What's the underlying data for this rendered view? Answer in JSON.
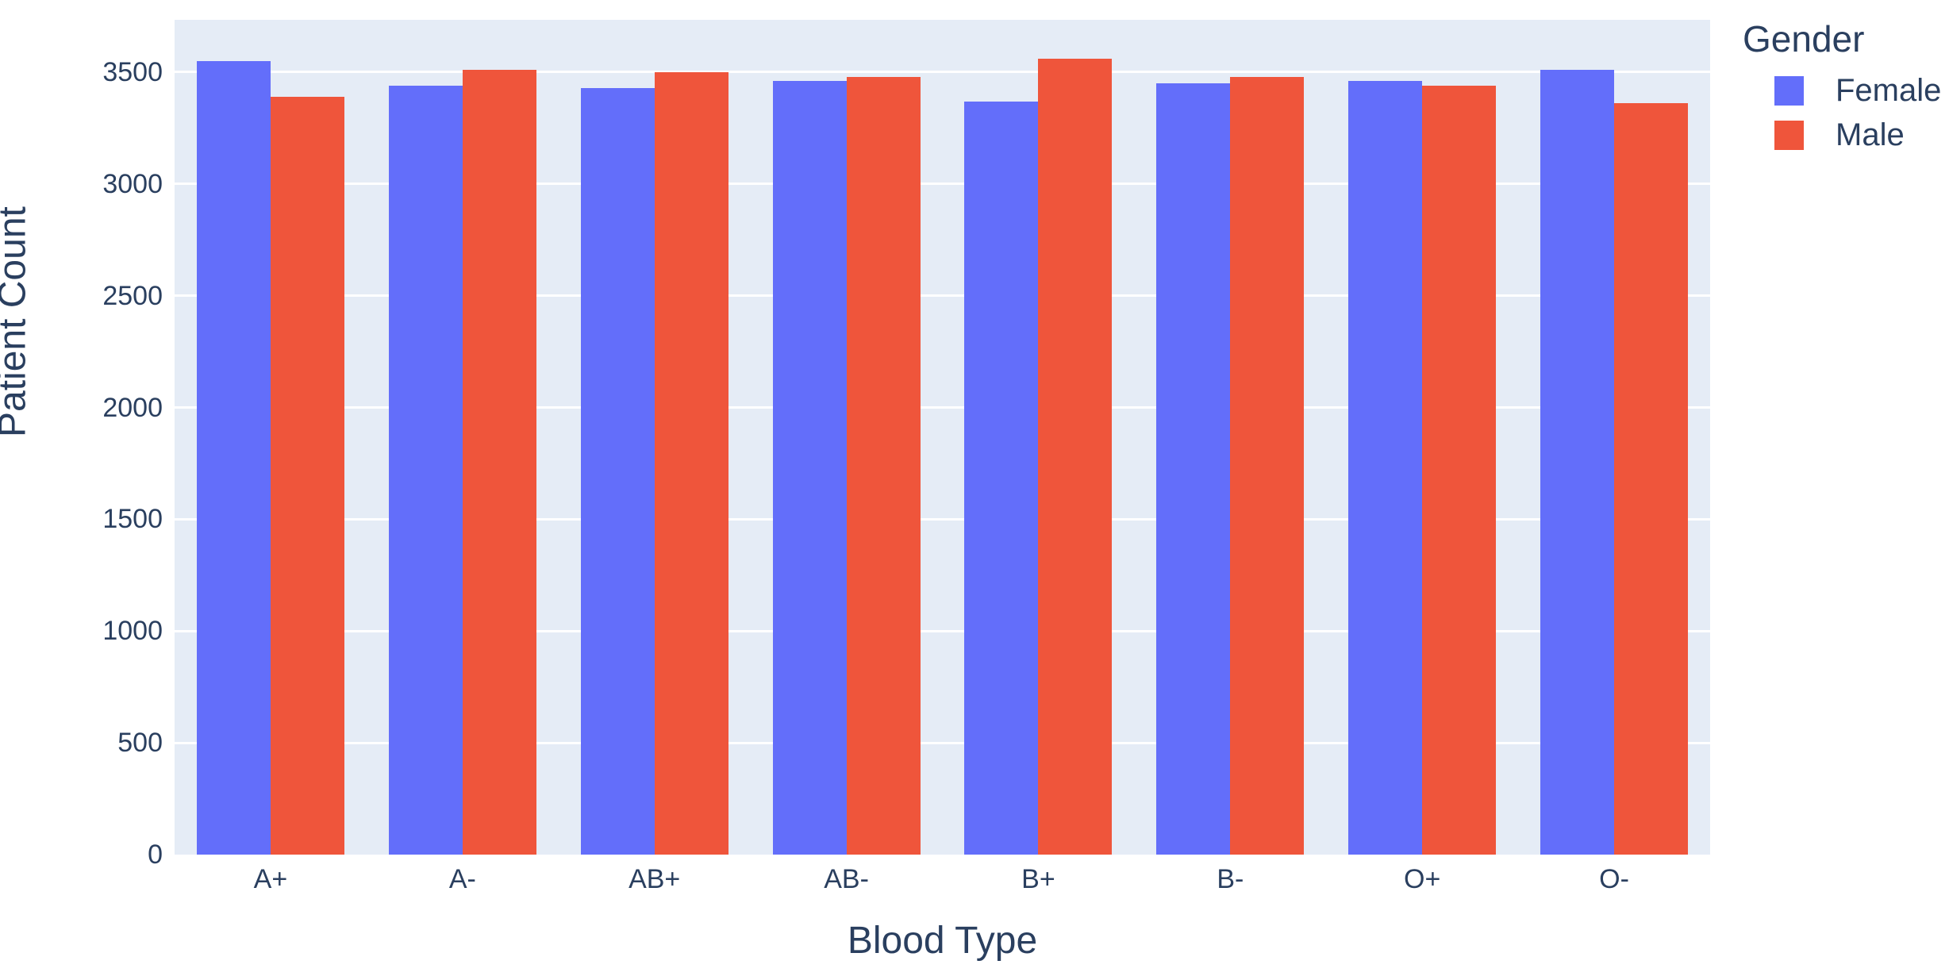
{
  "chart_data": {
    "type": "bar",
    "barmode": "group",
    "title": "",
    "xlabel": "Blood Type",
    "ylabel": "Patient Count",
    "legend_title": "Gender",
    "categories": [
      "A+",
      "A-",
      "AB+",
      "AB-",
      "B+",
      "B-",
      "O+",
      "O-"
    ],
    "series": [
      {
        "name": "Female",
        "color": "#636EFA",
        "values": [
          3550,
          3440,
          3430,
          3460,
          3370,
          3450,
          3460,
          3510
        ]
      },
      {
        "name": "Male",
        "color": "#EF553B",
        "values": [
          3390,
          3510,
          3500,
          3480,
          3560,
          3480,
          3440,
          3360
        ]
      }
    ],
    "ylim": [
      0,
      3734
    ],
    "yticks": [
      0,
      500,
      1000,
      1500,
      2000,
      2500,
      3000,
      3500
    ],
    "grid": true,
    "legend_position": "top-right",
    "plot_background": "#E5ECF6",
    "grid_color": "#FFFFFF",
    "text_color": "#2A3F5F"
  }
}
